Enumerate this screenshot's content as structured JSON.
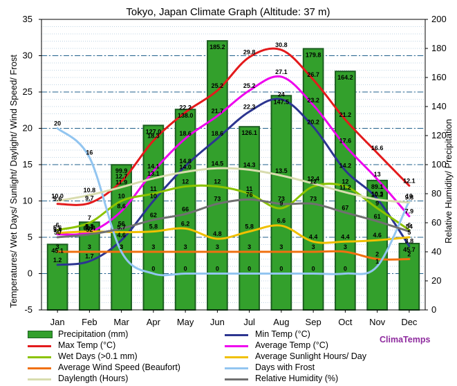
{
  "chart_data": {
    "type": "combo",
    "title": "Tokyo, Japan Climate Graph (Altitude: 37 m)",
    "ylabel_left": "Temperatures/ Wet Days/ Sunlight/ Daylight/ Wind Speed/ Frost",
    "ylabel_right": "Relative Humidity/ Precipitation",
    "ylim_left": [
      -5,
      35
    ],
    "ylim_right": [
      0,
      200
    ],
    "yticks_left": [
      "-5",
      "0",
      "5",
      "10",
      "15",
      "20",
      "25",
      "30",
      "35"
    ],
    "yticks_right": [
      "0",
      "20",
      "40",
      "60",
      "80",
      "100",
      "120",
      "140",
      "160",
      "180",
      "200"
    ],
    "categories": [
      "Jan",
      "Feb",
      "Mar",
      "Apr",
      "May",
      "Jun",
      "Jul",
      "Aug",
      "Sep",
      "Oct",
      "Nov",
      "Dec"
    ],
    "bars": {
      "name": "Precipitation (mm)",
      "axis": "right",
      "color": "#33a02c",
      "values": [
        45.1,
        60.4,
        99.9,
        127.0,
        138.0,
        185.2,
        126.1,
        147.5,
        179.8,
        164.2,
        89.1,
        45.7
      ],
      "labels": [
        "45.1",
        "60.4",
        "99.9",
        "127.0",
        "138.0",
        "185.2",
        "126.1",
        "147.5",
        "179.8",
        "164.2",
        "89.1",
        "45.7"
      ]
    },
    "series": [
      {
        "name": "Max Temp (°C)",
        "axis": "left",
        "color": "#e31a1c",
        "values": [
          9.6,
          9.7,
          12.7,
          18.3,
          22.2,
          25.2,
          29.8,
          30.8,
          26.7,
          21.2,
          16.6,
          12.1
        ],
        "labels": [
          "9.6",
          "9.7",
          "12.7",
          "18.3",
          "22.2",
          "25.2",
          "29.8",
          "30.8",
          "26.7",
          "21.2",
          "16.6",
          "12.1"
        ]
      },
      {
        "name": "Min Temp (°C)",
        "axis": "left",
        "color": "#2c3590",
        "values": [
          1.2,
          1.7,
          4.6,
          10.0,
          14.8,
          18.6,
          22.3,
          24.0,
          20.2,
          14.2,
          10.3,
          3.8
        ],
        "labels": [
          "1.2",
          "1.7",
          "4.6",
          "10",
          "14.8",
          "18.6",
          "22.3",
          "24",
          "20.2",
          "14.2",
          "10.3",
          "3.8"
        ]
      },
      {
        "name": "Average Temp (°C)",
        "axis": "left",
        "color": "#ee00ee",
        "values": [
          5.4,
          5.7,
          8.6,
          14.1,
          18.6,
          21.7,
          25.2,
          27.1,
          23.2,
          17.6,
          13.0,
          7.9
        ],
        "labels": [
          "5.4",
          "5.7",
          "8.6",
          "14.1",
          "18.6",
          "21.7",
          "25.2",
          "27.1",
          "23.2",
          "17.6",
          "13",
          "7.9"
        ]
      },
      {
        "name": "Wet Days (>0.1 mm)",
        "axis": "left",
        "color": "#8bc300",
        "values": [
          6.0,
          7.0,
          10.0,
          11.0,
          12.0,
          12.0,
          11.0,
          9.0,
          12.0,
          12.0,
          9.0,
          6.0
        ],
        "labels": [
          "6",
          "7",
          "10",
          "11",
          "12",
          "12",
          "11",
          "9",
          "12",
          "12",
          "9",
          "6"
        ]
      },
      {
        "name": "Average Sunlight Hours/ Day",
        "axis": "left",
        "color": "#f0c000",
        "values": [
          5.6,
          5.8,
          5.7,
          5.8,
          6.2,
          4.8,
          5.8,
          6.6,
          4.4,
          4.4,
          4.6,
          5.0
        ],
        "labels": [
          "5.6",
          "5.8",
          "5.7",
          "5.8",
          "6.2",
          "4.8",
          "5.8",
          "6.6",
          "4.4",
          "4.4",
          "4.6",
          "5"
        ]
      },
      {
        "name": "Average Wind Speed (Beaufort)",
        "axis": "left",
        "color": "#f07010",
        "values": [
          3,
          3,
          3,
          3,
          3,
          3,
          3,
          3,
          3,
          3,
          2,
          2
        ],
        "labels": [
          "3",
          "3",
          "3",
          "3",
          "3",
          "3",
          "3",
          "3",
          "3",
          "3",
          "2",
          "2"
        ]
      },
      {
        "name": "Days with Frost",
        "axis": "left",
        "color": "#92c5f0",
        "values": [
          20,
          16,
          3,
          0,
          0,
          0,
          0,
          0,
          0,
          0,
          1,
          10
        ],
        "labels": [
          "20",
          "16",
          "3",
          "0",
          "0",
          "0",
          "0",
          "0",
          "0",
          "0",
          "1",
          "10"
        ]
      },
      {
        "name": "Daylength (Hours)",
        "axis": "left",
        "color": "#d8dcae",
        "values": [
          10.0,
          10.8,
          11.9,
          13.1,
          14.0,
          14.5,
          14.3,
          13.5,
          12.4,
          11.2,
          10.2,
          9.8
        ],
        "labels": [
          "10.0",
          "10.8",
          "11.9",
          "13.1",
          "14.0",
          "14.5",
          "14.3",
          "13.5",
          "12.4",
          "11.2",
          "10.2",
          "9.8"
        ]
      },
      {
        "name": "Relative Humidity (%)",
        "axis": "right",
        "color": "#707070",
        "values": [
          50,
          52,
          56,
          62,
          66,
          73,
          76,
          73,
          73,
          67,
          61,
          54
        ],
        "labels": [
          "50",
          "52",
          "56",
          "62",
          "66",
          "73",
          "76",
          "73",
          "73",
          "67",
          "61",
          "54"
        ]
      }
    ],
    "legend_position": "bottom",
    "grid": true
  },
  "legend": {
    "items": [
      "Precipitation (mm)",
      "Min Temp (°C)",
      "Max Temp (°C)",
      "Average Temp (°C)",
      "Wet Days (>0.1 mm)",
      "Average Sunlight Hours/ Day",
      "Average Wind Speed (Beaufort)",
      "Days with Frost",
      "Daylength (Hours)",
      "Relative Humidity (%)"
    ]
  },
  "brand": "ClimaTemps"
}
